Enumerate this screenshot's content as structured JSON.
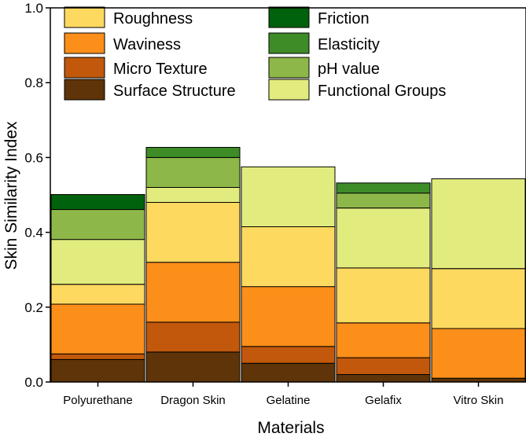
{
  "chart_data": {
    "type": "bar",
    "stacked": true,
    "xlabel": "Materials",
    "ylabel": "Skin Similarity Index",
    "ylim": [
      0,
      1.0
    ],
    "yticks": [
      "0.0",
      "0.2",
      "0.4",
      "0.6",
      "0.8",
      "1.0"
    ],
    "categories": [
      "Polyurethane",
      "Dragon Skin",
      "Gelatine",
      "Gelafix",
      "Vitro Skin"
    ],
    "legend_placement": "top",
    "series": [
      {
        "name": "Surface Structure",
        "color": "#5e3408",
        "values": [
          0.06,
          0.08,
          0.05,
          0.02,
          0.01
        ]
      },
      {
        "name": "Micro Texture",
        "color": "#c1580c",
        "values": [
          0.015,
          0.08,
          0.045,
          0.045,
          0.0
        ]
      },
      {
        "name": "Waviness",
        "color": "#fb8f1a",
        "values": [
          0.133,
          0.16,
          0.16,
          0.093,
          0.133
        ]
      },
      {
        "name": "Roughness",
        "color": "#fed95f",
        "values": [
          0.053,
          0.16,
          0.16,
          0.147,
          0.16
        ]
      },
      {
        "name": "Functional Groups",
        "color": "#e2ec7e",
        "values": [
          0.12,
          0.04,
          0.16,
          0.16,
          0.24
        ]
      },
      {
        "name": "pH value",
        "color": "#8db849",
        "values": [
          0.08,
          0.08,
          0.0,
          0.04,
          0.0
        ]
      },
      {
        "name": "Elasticity",
        "color": "#3d8c27",
        "values": [
          0.0,
          0.027,
          0.0,
          0.027,
          0.0
        ]
      },
      {
        "name": "Friction",
        "color": "#00620c",
        "values": [
          0.04,
          0.0,
          0.0,
          0.0,
          0.0
        ]
      }
    ],
    "legend": [
      {
        "name": "Roughness",
        "color": "#fed95f"
      },
      {
        "name": "Waviness",
        "color": "#fb8f1a"
      },
      {
        "name": "Micro Texture",
        "color": "#c1580c"
      },
      {
        "name": "Surface Structure",
        "color": "#5e3408"
      },
      {
        "name": "Friction",
        "color": "#00620c"
      },
      {
        "name": "Elasticity",
        "color": "#3d8c27"
      },
      {
        "name": "pH value",
        "color": "#8db849"
      },
      {
        "name": "Functional Groups",
        "color": "#e2ec7e"
      }
    ]
  }
}
